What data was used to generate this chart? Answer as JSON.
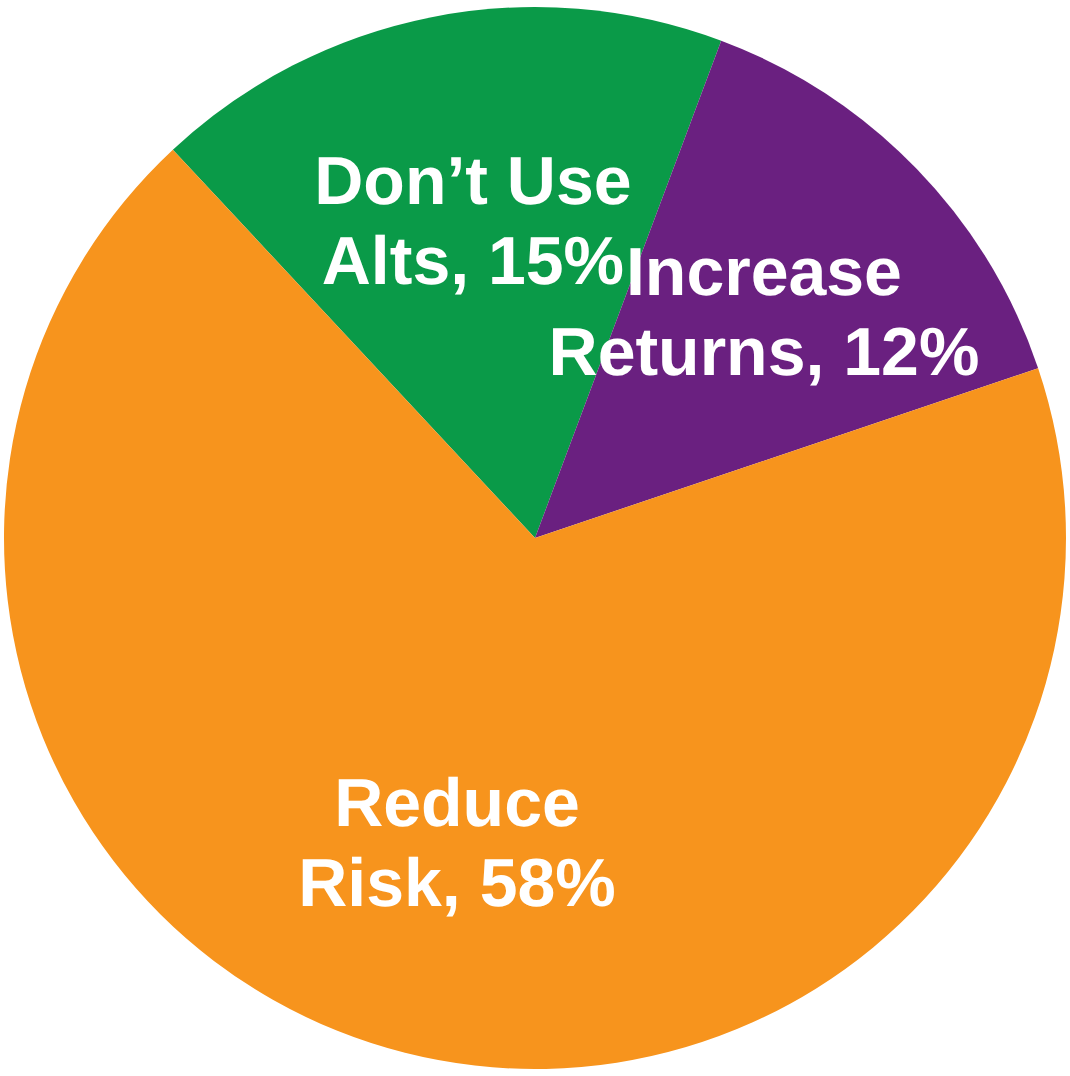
{
  "chart_data": {
    "type": "pie",
    "categories": [
      "Don’t Use Alts",
      "Increase Returns",
      "Reduce Risk"
    ],
    "values": [
      15,
      12,
      58
    ],
    "colors": [
      "#0a9a48",
      "#6a2080",
      "#f7941d"
    ],
    "value_labels": [
      "15%",
      "12%",
      "58%"
    ],
    "legend": false
  }
}
